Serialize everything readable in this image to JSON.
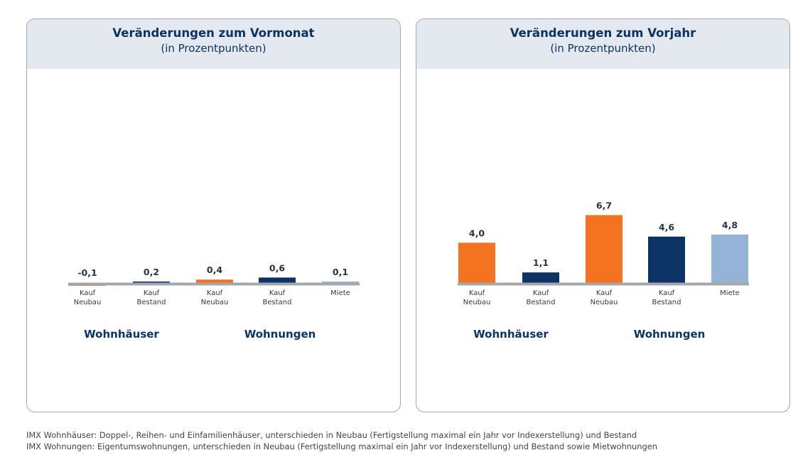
{
  "chart_data": [
    {
      "type": "bar",
      "title": "Veränderungen zum Vormonat",
      "subtitle": "(in Prozentpunkten)",
      "categories": [
        "Kauf Neubau",
        "Kauf Bestand",
        "Kauf Neubau",
        "Kauf Bestand",
        "Miete"
      ],
      "values": [
        -0.1,
        0.2,
        0.4,
        0.6,
        0.1
      ],
      "value_labels": [
        "-0,1",
        "0,2",
        "0,4",
        "0,6",
        "0,1"
      ],
      "group_labels": [
        "Wohnhäuser",
        "Wohnungen"
      ],
      "groups": [
        [
          0,
          1
        ],
        [
          2,
          3,
          4
        ]
      ],
      "ylim": [
        -0.2,
        7.2
      ],
      "grid": false
    },
    {
      "type": "bar",
      "title": "Veränderungen zum Vorjahr",
      "subtitle": "(in Prozentpunkten)",
      "categories": [
        "Kauf Neubau",
        "Kauf Bestand",
        "Kauf Neubau",
        "Kauf Bestand",
        "Miete"
      ],
      "values": [
        4.0,
        1.1,
        6.7,
        4.6,
        4.8
      ],
      "value_labels": [
        "4,0",
        "1,1",
        "6,7",
        "4,6",
        "4,8"
      ],
      "group_labels": [
        "Wohnhäuser",
        "Wohnungen"
      ],
      "groups": [
        [
          0,
          1
        ],
        [
          2,
          3,
          4
        ]
      ],
      "ylim": [
        -0.2,
        7.2
      ],
      "grid": false
    }
  ],
  "category_lines": [
    [
      "Kauf",
      "Neubau"
    ],
    [
      "Kauf",
      "Bestand"
    ],
    [
      "Kauf",
      "Neubau"
    ],
    [
      "Kauf",
      "Bestand"
    ],
    [
      "Miete"
    ]
  ],
  "colors": {
    "bars": [
      "#f47321",
      "#0d3366",
      "#f47321",
      "#0d3366",
      "#95b3d7"
    ],
    "baseline": "#a3a8ad",
    "header_bg": "#e4e9ef",
    "text": "#0d3366"
  },
  "footer": {
    "line1": "IMX Wohnhäuser: Doppel-, Reihen- und Einfamilienhäuser, unterschieden in Neubau (Fertigstellung maximal ein Jahr vor Indexerstellung) und Bestand",
    "line2": "IMX Wohnungen: Eigentumswohnungen, unterschieden in Neubau (Fertigstellung maximal ein Jahr vor Indexerstellung) und Bestand sowie Mietwohnungen"
  }
}
